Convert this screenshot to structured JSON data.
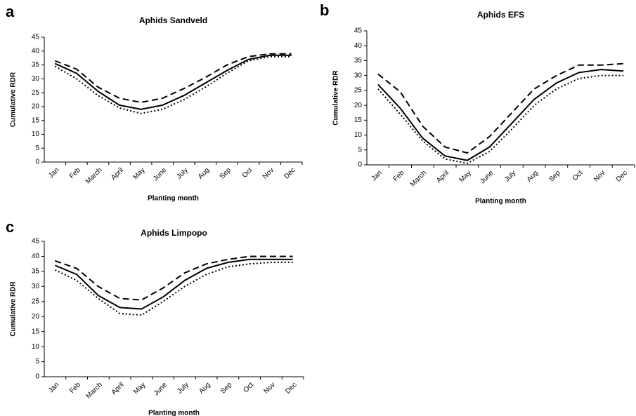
{
  "chart_data": [
    {
      "type": "line",
      "label": "a",
      "title": "Aphids Sandveld",
      "xlabel": "Planting month",
      "ylabel": "Cumulative RDR",
      "categories": [
        "Jan",
        "Feb",
        "March",
        "April",
        "May",
        "June",
        "July",
        "Aug",
        "Sep",
        "Oct",
        "Nov",
        "Dec"
      ],
      "series": [
        {
          "style": "dashed",
          "color": "#000000",
          "values": [
            36.5,
            33.5,
            27,
            23,
            21.5,
            23,
            26.5,
            30.5,
            35,
            38,
            39,
            39
          ]
        },
        {
          "style": "solid",
          "color": "#000000",
          "values": [
            35.5,
            32,
            25.5,
            20.5,
            19,
            20.5,
            24,
            28.5,
            33,
            37,
            38.5,
            38.5
          ]
        },
        {
          "style": "dotted",
          "color": "#000000",
          "values": [
            34.5,
            30,
            24,
            19.5,
            17.5,
            19,
            22.5,
            27,
            32,
            36.5,
            38,
            38
          ]
        }
      ],
      "ylim": [
        0,
        45
      ],
      "yticks": [
        0,
        5,
        10,
        15,
        20,
        25,
        30,
        35,
        40,
        45
      ]
    },
    {
      "type": "line",
      "label": "b",
      "title": "Aphids EFS",
      "xlabel": "Planting month",
      "ylabel": "Cumulative RDR",
      "categories": [
        "Jan",
        "Feb",
        "March",
        "April",
        "May",
        "June",
        "July",
        "Aug",
        "Sep",
        "Oct",
        "Nov",
        "Dec"
      ],
      "series": [
        {
          "style": "dashed",
          "color": "#000000",
          "values": [
            30.5,
            24.5,
            13,
            6,
            4,
            9.5,
            17.5,
            25.5,
            30,
            33.5,
            33.5,
            34
          ]
        },
        {
          "style": "solid",
          "color": "#000000",
          "values": [
            27,
            19,
            9,
            3,
            1.5,
            6,
            14,
            22,
            27.5,
            31,
            32,
            31.5
          ]
        },
        {
          "style": "dotted",
          "color": "#000000",
          "values": [
            25.5,
            17,
            8,
            2,
            0.5,
            4.5,
            12,
            20,
            25.5,
            29,
            30,
            30
          ]
        }
      ],
      "ylim": [
        0,
        45
      ],
      "yticks": [
        0,
        5,
        10,
        15,
        20,
        25,
        30,
        35,
        40,
        45
      ]
    },
    {
      "type": "line",
      "label": "c",
      "title": "Aphids Limpopo",
      "xlabel": "Planting month",
      "ylabel": "Cumulative RDR",
      "categories": [
        "Jan",
        "Feb",
        "March",
        "April",
        "May",
        "June",
        "July",
        "Aug",
        "Sep",
        "Oct",
        "Nov",
        "Dec"
      ],
      "series": [
        {
          "style": "dashed",
          "color": "#000000",
          "values": [
            38.5,
            36,
            30,
            26,
            25.5,
            29.5,
            34.5,
            37.5,
            39,
            40,
            40,
            40
          ]
        },
        {
          "style": "solid",
          "color": "#000000",
          "values": [
            37,
            34,
            27,
            23,
            22.5,
            26.5,
            32,
            36,
            38,
            39,
            39,
            39
          ]
        },
        {
          "style": "dotted",
          "color": "#000000",
          "values": [
            35.5,
            32,
            26,
            21,
            20.5,
            25,
            30,
            34,
            36.5,
            37.5,
            38,
            38
          ]
        }
      ],
      "ylim": [
        0,
        45
      ],
      "yticks": [
        0,
        5,
        10,
        15,
        20,
        25,
        30,
        35,
        40,
        45
      ]
    }
  ]
}
